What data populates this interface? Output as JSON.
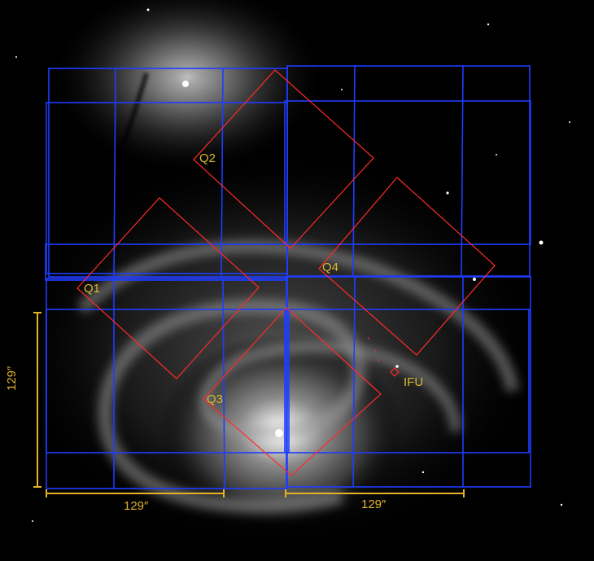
{
  "labels": {
    "q1": "Q1",
    "q2": "Q2",
    "q3": "Q3",
    "q4": "Q4",
    "ifu": "IFU"
  },
  "scale": {
    "horizontal_left": "129″",
    "horizontal_right": "129″",
    "vertical": "129″"
  },
  "colors": {
    "background": "#000000",
    "mosaic_grid": "#1f3dff",
    "quadrant_outline": "#ff2a2a",
    "annotation": "#e3b428"
  }
}
